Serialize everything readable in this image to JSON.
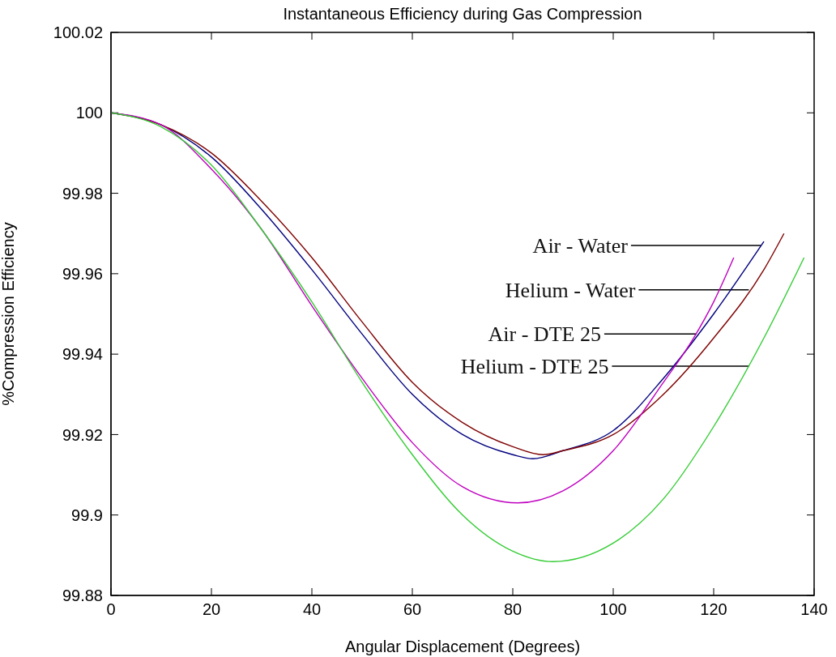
{
  "chart_data": {
    "type": "line",
    "title": "Instantaneous Efficiency during Gas Compression",
    "xlabel": "Angular Displacement (Degrees)",
    "ylabel": "%Compression Efficiency",
    "xlim": [
      0,
      140
    ],
    "xticks": [
      0,
      20,
      40,
      60,
      80,
      100,
      120,
      140
    ],
    "ylim": [
      99.88,
      100.02
    ],
    "yticks": [
      99.88,
      99.9,
      99.92,
      99.94,
      99.96,
      99.98,
      100,
      100.02
    ],
    "grid": false,
    "legend": false,
    "marker": "none",
    "line_style": "solid",
    "series": [
      {
        "color": "#00007f",
        "x": [
          0,
          10,
          20,
          30,
          40,
          50,
          60,
          70,
          80,
          84,
          90,
          100,
          110,
          120,
          130
        ],
        "values": [
          100,
          99.997,
          99.989,
          99.976,
          99.961,
          99.945,
          99.93,
          99.92,
          99.915,
          99.914,
          99.916,
          99.921,
          99.934,
          99.95,
          99.968
        ]
      },
      {
        "color": "#7f0000",
        "x": [
          0,
          10,
          20,
          30,
          40,
          50,
          60,
          70,
          80,
          86,
          90,
          100,
          110,
          120,
          130,
          134
        ],
        "values": [
          100,
          99.997,
          99.99,
          99.978,
          99.964,
          99.948,
          99.933,
          99.923,
          99.917,
          99.915,
          99.916,
          99.92,
          99.93,
          99.944,
          99.961,
          99.97
        ]
      },
      {
        "color": "#bf00bf",
        "x": [
          0,
          10,
          20,
          30,
          40,
          50,
          60,
          70,
          81,
          90,
          100,
          110,
          116,
          120,
          124
        ],
        "values": [
          100,
          99.997,
          99.986,
          99.971,
          99.952,
          99.934,
          99.918,
          99.907,
          99.903,
          99.906,
          99.916,
          99.933,
          99.944,
          99.953,
          99.964
        ]
      },
      {
        "color": "#33cc33",
        "x": [
          0,
          10,
          20,
          30,
          40,
          50,
          60,
          70,
          80,
          88,
          100,
          110,
          120,
          130,
          138
        ],
        "values": [
          100,
          99.9965,
          99.987,
          99.971,
          99.953,
          99.933,
          99.915,
          99.9,
          99.891,
          99.8884,
          99.893,
          99.904,
          99.922,
          99.944,
          99.964
        ]
      }
    ],
    "annotations": [
      {
        "text": "Air - Water",
        "x": 129.5,
        "y": 99.967
      },
      {
        "text": "Helium - Water",
        "x": 127,
        "y": 99.956
      },
      {
        "text": "Air - DTE 25",
        "x": 116.6,
        "y": 99.945
      },
      {
        "text": "Helium - DTE 25",
        "x": 127,
        "y": 99.937
      }
    ]
  }
}
